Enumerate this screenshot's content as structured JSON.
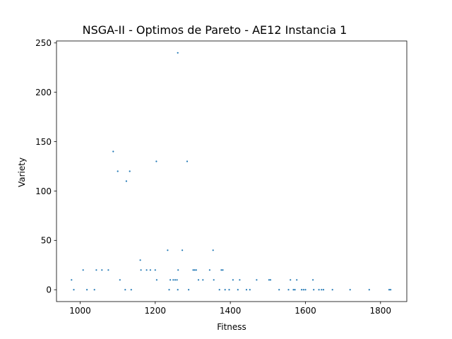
{
  "chart_data": {
    "type": "scatter",
    "title": "NSGA-II - Optimos de Pareto - AE12 Instancia 1",
    "xlabel": "Fitness",
    "ylabel": "Variety",
    "xlim": [
      937,
      1870
    ],
    "ylim": [
      -12,
      252
    ],
    "xticks": [
      1000,
      1200,
      1400,
      1600,
      1800
    ],
    "yticks": [
      0,
      50,
      100,
      150,
      200,
      250
    ],
    "grid": false,
    "marker_color": "#1f77b4",
    "points": [
      [
        977,
        10
      ],
      [
        983,
        0
      ],
      [
        1008,
        20
      ],
      [
        1018,
        0
      ],
      [
        1038,
        0
      ],
      [
        1043,
        20
      ],
      [
        1058,
        20
      ],
      [
        1075,
        20
      ],
      [
        1088,
        140
      ],
      [
        1100,
        120
      ],
      [
        1106,
        10
      ],
      [
        1120,
        0
      ],
      [
        1123,
        110
      ],
      [
        1132,
        120
      ],
      [
        1136,
        0
      ],
      [
        1160,
        30
      ],
      [
        1162,
        20
      ],
      [
        1177,
        20
      ],
      [
        1187,
        20
      ],
      [
        1200,
        20
      ],
      [
        1203,
        130
      ],
      [
        1204,
        10
      ],
      [
        1233,
        40
      ],
      [
        1237,
        0
      ],
      [
        1240,
        10
      ],
      [
        1248,
        10
      ],
      [
        1253,
        10
      ],
      [
        1258,
        10
      ],
      [
        1260,
        0
      ],
      [
        1261,
        20
      ],
      [
        1260,
        240
      ],
      [
        1272,
        40
      ],
      [
        1285,
        130
      ],
      [
        1289,
        0
      ],
      [
        1301,
        20
      ],
      [
        1305,
        20
      ],
      [
        1309,
        20
      ],
      [
        1315,
        10
      ],
      [
        1327,
        10
      ],
      [
        1345,
        20
      ],
      [
        1354,
        40
      ],
      [
        1356,
        10
      ],
      [
        1371,
        0
      ],
      [
        1376,
        20
      ],
      [
        1380,
        20
      ],
      [
        1386,
        0
      ],
      [
        1397,
        0
      ],
      [
        1407,
        10
      ],
      [
        1420,
        0
      ],
      [
        1425,
        10
      ],
      [
        1443,
        0
      ],
      [
        1452,
        0
      ],
      [
        1470,
        10
      ],
      [
        1503,
        10
      ],
      [
        1507,
        10
      ],
      [
        1530,
        0
      ],
      [
        1555,
        0
      ],
      [
        1560,
        10
      ],
      [
        1568,
        0
      ],
      [
        1572,
        0
      ],
      [
        1577,
        10
      ],
      [
        1590,
        0
      ],
      [
        1595,
        0
      ],
      [
        1600,
        0
      ],
      [
        1620,
        10
      ],
      [
        1622,
        0
      ],
      [
        1636,
        0
      ],
      [
        1643,
        0
      ],
      [
        1648,
        0
      ],
      [
        1672,
        0
      ],
      [
        1719,
        0
      ],
      [
        1770,
        0
      ],
      [
        1823,
        0
      ],
      [
        1827,
        0
      ]
    ]
  }
}
